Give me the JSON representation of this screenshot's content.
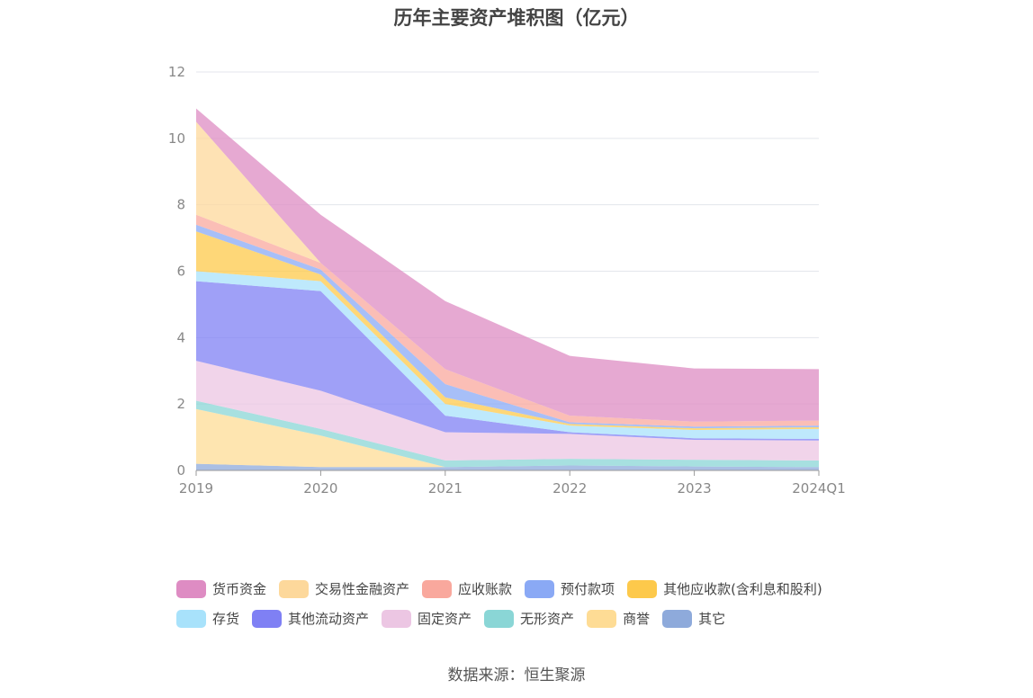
{
  "source_text": "数据来源：恒生聚源",
  "chart_data": {
    "type": "area",
    "stacked": true,
    "title": "历年主要资产堆积图（亿元）",
    "xlabel": "",
    "ylabel": "",
    "categories": [
      "2019",
      "2020",
      "2021",
      "2022",
      "2023",
      "2024Q1"
    ],
    "ylim": [
      0,
      12
    ],
    "yticks": [
      0,
      2,
      4,
      6,
      8,
      10,
      12
    ],
    "grid": true,
    "legend_position": "bottom",
    "series": [
      {
        "name": "其它",
        "color": "#8eaadb",
        "values": [
          0.2,
          0.1,
          0.1,
          0.15,
          0.12,
          0.1
        ]
      },
      {
        "name": "商誉",
        "color": "#fedc95",
        "values": [
          1.65,
          0.95,
          0.0,
          0.0,
          0.0,
          0.0
        ]
      },
      {
        "name": "无形资产",
        "color": "#8ad6d6",
        "values": [
          0.25,
          0.2,
          0.2,
          0.2,
          0.2,
          0.2
        ]
      },
      {
        "name": "固定资产",
        "color": "#ecc6e3",
        "values": [
          1.2,
          1.15,
          0.85,
          0.75,
          0.6,
          0.6
        ]
      },
      {
        "name": "其他流动资产",
        "color": "#7f80f4",
        "values": [
          2.4,
          3.0,
          0.5,
          0.05,
          0.05,
          0.05
        ]
      },
      {
        "name": "存货",
        "color": "#a8e2fb",
        "values": [
          0.3,
          0.3,
          0.35,
          0.2,
          0.25,
          0.3
        ]
      },
      {
        "name": "其他应收款(含利息和股利)",
        "color": "#fdc94b",
        "values": [
          1.2,
          0.2,
          0.2,
          0.05,
          0.05,
          0.05
        ]
      },
      {
        "name": "预付款项",
        "color": "#8aa9f5",
        "values": [
          0.2,
          0.15,
          0.4,
          0.05,
          0.05,
          0.05
        ]
      },
      {
        "name": "应收账款",
        "color": "#f9a89d",
        "values": [
          0.3,
          0.2,
          0.45,
          0.2,
          0.15,
          0.15
        ]
      },
      {
        "name": "交易性金融资产",
        "color": "#fdd89b",
        "values": [
          2.8,
          0.0,
          0.0,
          0.0,
          0.0,
          0.0
        ]
      },
      {
        "name": "货币资金",
        "color": "#de8cc3",
        "values": [
          0.4,
          1.45,
          2.05,
          1.8,
          1.6,
          1.55
        ]
      }
    ],
    "legend_order": [
      [
        "货币资金",
        "交易性金融资产",
        "应收账款",
        "预付款项",
        "其他应收款(含利息和股利)"
      ],
      [
        "存货",
        "其他流动资产",
        "固定资产",
        "无形资产",
        "商誉",
        "其它"
      ]
    ]
  }
}
